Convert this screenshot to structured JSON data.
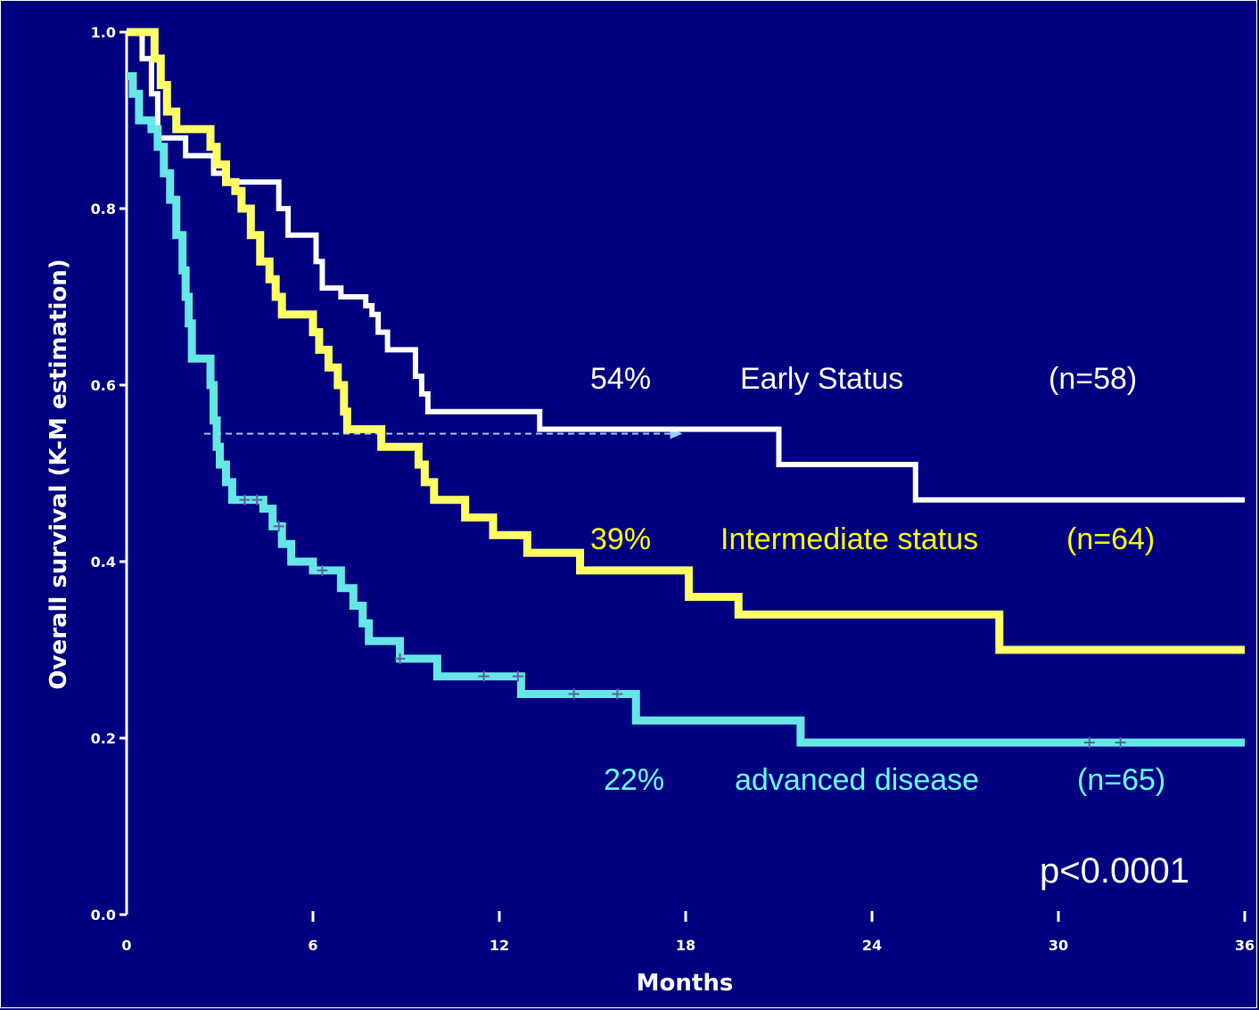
{
  "chart_data": {
    "type": "line",
    "title": "",
    "xlabel": "Months",
    "ylabel": "Overall survival (K-M estimation)",
    "xlim": [
      0,
      36
    ],
    "ylim": [
      0.0,
      1.0
    ],
    "xticks": [
      0,
      6,
      12,
      18,
      24,
      30,
      36
    ],
    "yticks": [
      0.0,
      0.2,
      0.4,
      0.6,
      0.8,
      1.0
    ],
    "xtick_labels": [
      "0",
      "6",
      "12",
      "18",
      "24",
      "30",
      "36"
    ],
    "ytick_labels": [
      "0.0",
      "0.2",
      "0.4",
      "0.6",
      "0.8",
      "1.0"
    ],
    "step": true,
    "series": [
      {
        "name": "Early Status",
        "color": "#ffffff",
        "annotation": {
          "percent": "54%",
          "label": "Early Status",
          "n": "(n=58)"
        },
        "points": [
          [
            0,
            1.0
          ],
          [
            0.5,
            0.97
          ],
          [
            0.8,
            0.93
          ],
          [
            1.0,
            0.88
          ],
          [
            1.8,
            0.88
          ],
          [
            1.9,
            0.86
          ],
          [
            2.6,
            0.86
          ],
          [
            2.8,
            0.84
          ],
          [
            3.2,
            0.83
          ],
          [
            4.7,
            0.83
          ],
          [
            4.9,
            0.8
          ],
          [
            5.2,
            0.77
          ],
          [
            6.0,
            0.77
          ],
          [
            6.1,
            0.74
          ],
          [
            6.3,
            0.71
          ],
          [
            6.7,
            0.71
          ],
          [
            6.9,
            0.7
          ],
          [
            7.6,
            0.7
          ],
          [
            7.7,
            0.69
          ],
          [
            7.9,
            0.68
          ],
          [
            8.1,
            0.66
          ],
          [
            8.4,
            0.64
          ],
          [
            9.1,
            0.64
          ],
          [
            9.3,
            0.61
          ],
          [
            9.5,
            0.59
          ],
          [
            9.7,
            0.57
          ],
          [
            13.1,
            0.57
          ],
          [
            13.3,
            0.55
          ],
          [
            20.9,
            0.55
          ],
          [
            21.0,
            0.51
          ],
          [
            25.3,
            0.51
          ],
          [
            25.4,
            0.47
          ],
          [
            36.0,
            0.47
          ]
        ]
      },
      {
        "name": "Intermediate status",
        "color": "#ffff66",
        "annotation": {
          "percent": "39%",
          "label": "Intermediate status",
          "n": "(n=64)"
        },
        "points": [
          [
            0,
            1.0
          ],
          [
            0.7,
            1.0
          ],
          [
            0.9,
            0.97
          ],
          [
            1.1,
            0.94
          ],
          [
            1.3,
            0.91
          ],
          [
            1.6,
            0.89
          ],
          [
            2.5,
            0.89
          ],
          [
            2.7,
            0.87
          ],
          [
            2.9,
            0.85
          ],
          [
            3.2,
            0.83
          ],
          [
            3.5,
            0.82
          ],
          [
            3.7,
            0.8
          ],
          [
            4.0,
            0.77
          ],
          [
            4.3,
            0.74
          ],
          [
            4.6,
            0.72
          ],
          [
            4.8,
            0.7
          ],
          [
            5.0,
            0.68
          ],
          [
            5.8,
            0.68
          ],
          [
            6.0,
            0.66
          ],
          [
            6.2,
            0.64
          ],
          [
            6.5,
            0.62
          ],
          [
            6.8,
            0.6
          ],
          [
            7.0,
            0.57
          ],
          [
            7.1,
            0.55
          ],
          [
            8.0,
            0.55
          ],
          [
            8.2,
            0.53
          ],
          [
            9.2,
            0.53
          ],
          [
            9.4,
            0.51
          ],
          [
            9.6,
            0.49
          ],
          [
            9.9,
            0.47
          ],
          [
            10.7,
            0.47
          ],
          [
            10.9,
            0.45
          ],
          [
            11.6,
            0.45
          ],
          [
            11.8,
            0.43
          ],
          [
            12.8,
            0.43
          ],
          [
            12.9,
            0.41
          ],
          [
            14.5,
            0.41
          ],
          [
            14.6,
            0.39
          ],
          [
            18.0,
            0.39
          ],
          [
            18.1,
            0.36
          ],
          [
            19.6,
            0.36
          ],
          [
            19.7,
            0.34
          ],
          [
            28.0,
            0.34
          ],
          [
            28.1,
            0.3
          ],
          [
            36.0,
            0.3
          ]
        ]
      },
      {
        "name": "advanced disease",
        "color": "#66e6e6",
        "annotation": {
          "percent": "22%",
          "label": "advanced disease",
          "n": "(n=65)"
        },
        "points": [
          [
            0,
            0.95
          ],
          [
            0.2,
            0.93
          ],
          [
            0.4,
            0.9
          ],
          [
            0.8,
            0.89
          ],
          [
            1.0,
            0.87
          ],
          [
            1.2,
            0.84
          ],
          [
            1.4,
            0.81
          ],
          [
            1.6,
            0.77
          ],
          [
            1.8,
            0.73
          ],
          [
            1.9,
            0.7
          ],
          [
            2.0,
            0.67
          ],
          [
            2.1,
            0.63
          ],
          [
            2.6,
            0.63
          ],
          [
            2.7,
            0.6
          ],
          [
            2.8,
            0.56
          ],
          [
            2.9,
            0.53
          ],
          [
            3.0,
            0.51
          ],
          [
            3.2,
            0.49
          ],
          [
            3.4,
            0.47
          ],
          [
            4.2,
            0.47
          ],
          [
            4.4,
            0.46
          ],
          [
            4.7,
            0.44
          ],
          [
            5.0,
            0.42
          ],
          [
            5.3,
            0.4
          ],
          [
            6.0,
            0.39
          ],
          [
            6.7,
            0.39
          ],
          [
            6.9,
            0.37
          ],
          [
            7.3,
            0.35
          ],
          [
            7.6,
            0.33
          ],
          [
            7.8,
            0.31
          ],
          [
            8.6,
            0.31
          ],
          [
            8.8,
            0.29
          ],
          [
            9.8,
            0.29
          ],
          [
            10.0,
            0.27
          ],
          [
            12.6,
            0.27
          ],
          [
            12.7,
            0.25
          ],
          [
            16.2,
            0.25
          ],
          [
            16.4,
            0.22
          ],
          [
            21.6,
            0.22
          ],
          [
            21.7,
            0.195
          ],
          [
            36.0,
            0.195
          ]
        ]
      }
    ],
    "censor_marks": [
      [
        3.8,
        0.47
      ],
      [
        4.2,
        0.47
      ],
      [
        4.9,
        0.44
      ],
      [
        6.3,
        0.39
      ],
      [
        8.8,
        0.29
      ],
      [
        11.5,
        0.27
      ],
      [
        12.6,
        0.27
      ],
      [
        14.4,
        0.25
      ],
      [
        15.8,
        0.25
      ],
      [
        31.0,
        0.195
      ],
      [
        32.0,
        0.195
      ]
    ],
    "median_marker": {
      "y": 0.545,
      "x_from": 2.5,
      "x_to": 17.9,
      "color": "#99ccff"
    },
    "p_value": "p<0.0001"
  }
}
